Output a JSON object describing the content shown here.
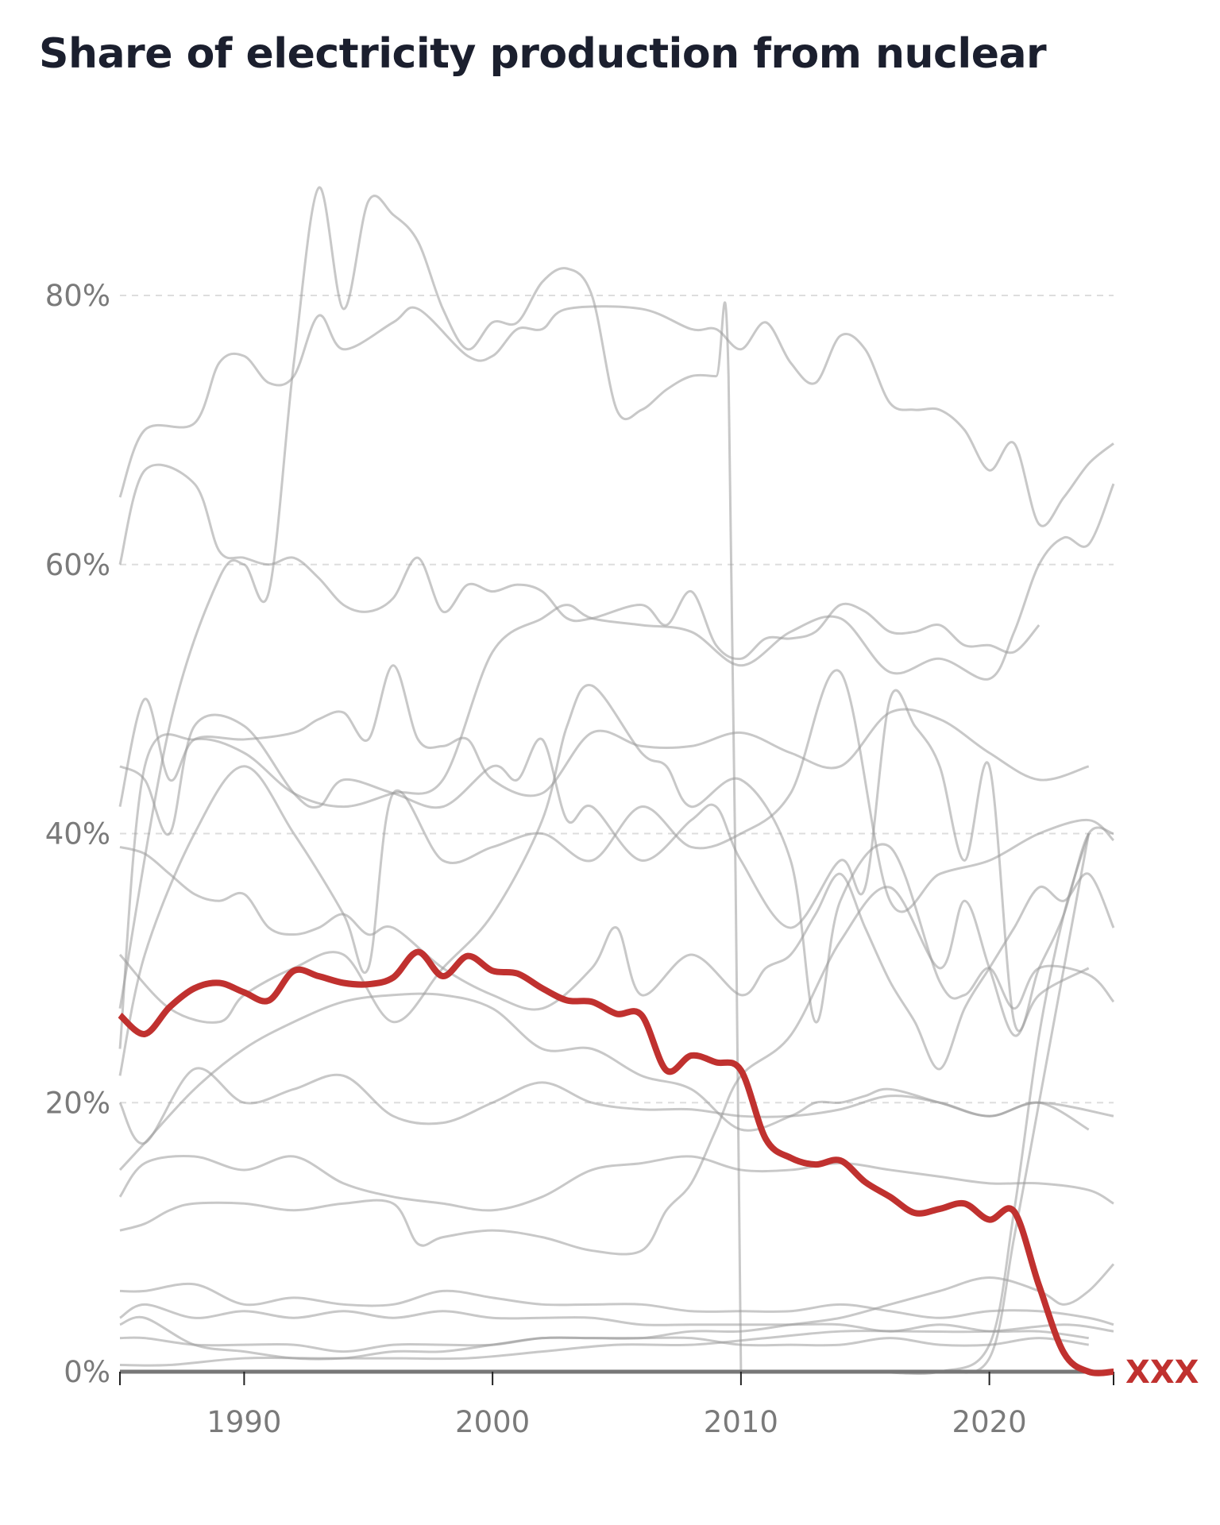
{
  "title": "Share of electricity production from nuclear",
  "chart_data": {
    "type": "line",
    "title": "Share of electricity production from nuclear",
    "xlabel": "",
    "ylabel": "",
    "xlim": [
      1985,
      2025
    ],
    "ylim": [
      0,
      80
    ],
    "y_ticks": [
      0,
      20,
      40,
      60,
      80
    ],
    "y_tick_labels": [
      "0%",
      "20%",
      "40%",
      "60%",
      "80%"
    ],
    "x_ticks": [
      1990,
      2000,
      2010,
      2020
    ],
    "x_tick_labels": [
      "1990",
      "2000",
      "2010",
      "2020"
    ],
    "grid": "horizontal dashed",
    "colors": {
      "highlight": "#c0312f",
      "background": "#9a9a9a",
      "axis": "#777777"
    },
    "highlight": {
      "name": "XXX",
      "x": [
        1985,
        1986,
        1987,
        1988,
        1989,
        1990,
        1991,
        1992,
        1993,
        1994,
        1995,
        1996,
        1997,
        1998,
        1999,
        2000,
        2001,
        2002,
        2003,
        2004,
        2005,
        2006,
        2007,
        2008,
        2009,
        2010,
        2011,
        2012,
        2013,
        2014,
        2015,
        2016,
        2017,
        2018,
        2019,
        2020,
        2021,
        2022,
        2023,
        2024,
        2025
      ],
      "values": [
        26.5,
        25.1,
        27.1,
        28.5,
        28.9,
        28.2,
        27.6,
        29.8,
        29.4,
        28.9,
        28.8,
        29.3,
        31.2,
        29.4,
        30.9,
        29.8,
        29.6,
        28.5,
        27.6,
        27.5,
        26.6,
        26.5,
        22.4,
        23.5,
        23.0,
        22.4,
        17.3,
        15.9,
        15.4,
        15.7,
        14.1,
        13.0,
        11.8,
        12.1,
        12.5,
        11.3,
        11.9,
        6.4,
        1.4,
        0,
        0
      ]
    },
    "series": [
      {
        "x": [
          1985,
          1986,
          1988,
          1989,
          1990,
          1991,
          1992,
          1993,
          1994,
          1996,
          1997,
          1999,
          2000,
          2001,
          2002,
          2003,
          2006,
          2008,
          2009,
          2010,
          2011,
          2012,
          2013,
          2014,
          2015,
          2016,
          2017,
          2018,
          2019,
          2020,
          2021,
          2022,
          2023,
          2024,
          2025
        ],
        "values": [
          65,
          70,
          70.5,
          75,
          75.5,
          73.5,
          74,
          78.5,
          76,
          78,
          79,
          75.5,
          75.5,
          77.5,
          77.5,
          79,
          79,
          77.5,
          77.5,
          76,
          78,
          75,
          73.5,
          77,
          76,
          72,
          71.5,
          71.5,
          70,
          67,
          69,
          63,
          65,
          67.5,
          69
        ]
      },
      {
        "x": [
          1985,
          1986,
          1988,
          1989,
          1990,
          1991,
          1992,
          1993,
          1994,
          1995,
          1996,
          1997,
          1998,
          1999,
          2000,
          2001,
          2002,
          2003,
          2004,
          2006,
          2007,
          2008,
          2009,
          2010,
          2011,
          2012,
          2013,
          2014,
          2015,
          2016,
          2017,
          2018,
          2019,
          2020,
          2021,
          2022
        ],
        "values": [
          60,
          67,
          66,
          61,
          60.5,
          60,
          60.5,
          59,
          57,
          56.5,
          57.5,
          60.5,
          56.5,
          58.5,
          58,
          58.5,
          58,
          56,
          56,
          57,
          55.5,
          58,
          54,
          53,
          54.5,
          54.5,
          55,
          57,
          56.5,
          55,
          55,
          55.5,
          54,
          54,
          53.5,
          55.5
        ]
      },
      {
        "x": [
          1985,
          1987,
          1989,
          1990,
          1991,
          1992,
          1993,
          1994,
          1995,
          1996,
          1997,
          1998,
          1999,
          2000,
          2001,
          2002,
          2003,
          2004,
          2005,
          2006,
          2007,
          2008,
          2009,
          2009.5,
          2010
        ],
        "values": [
          27,
          48,
          59,
          60,
          58,
          75,
          88,
          79,
          87,
          86,
          84,
          79,
          76,
          78,
          78,
          81,
          82,
          80,
          71.5,
          71.5,
          73,
          74,
          74,
          74,
          0
        ]
      },
      {
        "x": [
          1985,
          1986,
          1988,
          1990,
          1992,
          1994,
          1996,
          1998,
          2000,
          2002,
          2003,
          2004,
          2006,
          2008,
          2010,
          2012,
          2014,
          2016,
          2018,
          2020,
          2021,
          2022,
          2023,
          2024,
          2025
        ],
        "values": [
          24,
          45,
          47,
          46,
          43,
          42,
          43,
          44,
          53.5,
          56,
          57,
          56,
          55.5,
          55,
          52.5,
          55,
          56,
          52,
          53,
          51.5,
          55,
          60,
          62,
          61.5,
          66
        ]
      },
      {
        "x": [
          1985,
          1986,
          1987,
          1988,
          1990,
          1992,
          1993,
          1994,
          1995,
          1996,
          1997,
          1998,
          1999,
          2000,
          2002,
          2004,
          2006,
          2008,
          2010,
          2012,
          2014,
          2016,
          2018,
          2020,
          2022,
          2024
        ],
        "values": [
          42,
          50,
          44,
          47,
          47,
          47.5,
          48.5,
          49,
          47,
          52.5,
          47,
          46.5,
          47,
          44,
          43,
          47.5,
          46.5,
          46.5,
          47.5,
          46,
          45,
          49,
          48.5,
          46,
          44,
          45
        ]
      },
      {
        "x": [
          1985,
          1986,
          1987,
          1988,
          1989,
          1990,
          1991,
          1992,
          1993,
          1994,
          1995,
          1996,
          1998,
          2000,
          2002,
          2004,
          2005,
          2006,
          2008,
          2010,
          2011,
          2012,
          2013,
          2014,
          2015,
          2016,
          2017,
          2018,
          2019,
          2020,
          2021,
          2022,
          2023,
          2024,
          2025
        ],
        "values": [
          39,
          38.5,
          37,
          35.5,
          35,
          35.5,
          33,
          32.5,
          33,
          34,
          32.5,
          33,
          30,
          28,
          27,
          30,
          33,
          28,
          31,
          28,
          30,
          31,
          34,
          37,
          33,
          29,
          26,
          22.5,
          27,
          30,
          33,
          36,
          35,
          37,
          33
        ]
      },
      {
        "x": [
          1985,
          1986,
          1987,
          1988,
          1990,
          1992,
          1993,
          1994,
          1996,
          1998,
          2000,
          2001,
          2002,
          2003,
          2004,
          2006,
          2008,
          2009,
          2010,
          2012,
          2014,
          2015,
          2016,
          2017,
          2018,
          2019,
          2020,
          2021,
          2022,
          2023,
          2024,
          2025
        ],
        "values": [
          45,
          44,
          40,
          48,
          48,
          43,
          42,
          44,
          43,
          42,
          45,
          44,
          47,
          41,
          42,
          38,
          41,
          42,
          38,
          33,
          38,
          36,
          50,
          48,
          45,
          38,
          45,
          26,
          30,
          34,
          40,
          40
        ]
      },
      {
        "x": [
          1985,
          1987,
          1989,
          1990,
          1992,
          1994,
          1996,
          1998,
          2000,
          2002,
          2003,
          2004,
          2006,
          2007,
          2008,
          2010,
          2012,
          2013,
          2014,
          2016,
          2018,
          2019,
          2020,
          2021,
          2022,
          2024,
          2025
        ],
        "values": [
          31,
          27,
          26,
          28,
          30,
          31,
          26,
          30,
          34,
          41,
          48,
          51,
          46,
          45,
          42,
          44,
          38,
          26,
          35,
          39,
          29,
          28,
          30,
          27,
          30,
          29.5,
          27.5
        ]
      },
      {
        "x": [
          1985,
          1986,
          1988,
          1990,
          1992,
          1994,
          1995,
          1996,
          1998,
          2000,
          2002,
          2004,
          2006,
          2008,
          2010,
          2012,
          2014,
          2016,
          2018,
          2020,
          2022,
          2024,
          2025
        ],
        "values": [
          22,
          31,
          40,
          45,
          40,
          34,
          30,
          43,
          38,
          39,
          40,
          38,
          42,
          39,
          40,
          43,
          52,
          35,
          37,
          38,
          40,
          41,
          39.5
        ]
      },
      {
        "x": [
          1985,
          1986,
          1988,
          1990,
          1992,
          1994,
          1996,
          1998,
          2000,
          2002,
          2004,
          2006,
          2008,
          2010,
          2012,
          2013,
          2014,
          2015,
          2016,
          2018,
          2020,
          2022,
          2024
        ],
        "values": [
          15,
          17,
          21,
          24,
          26,
          27.5,
          28,
          28,
          27,
          24,
          24,
          22,
          21,
          18,
          19,
          20,
          20,
          20.5,
          21,
          20,
          19,
          20,
          18
        ]
      },
      {
        "x": [
          1985,
          1986,
          1988,
          1990,
          1992,
          1994,
          1996,
          1998,
          2000,
          2002,
          2004,
          2006,
          2008,
          2010,
          2012,
          2014,
          2016,
          2018,
          2020,
          2022,
          2025
        ],
        "values": [
          20,
          17,
          22.5,
          20,
          21,
          22,
          19,
          18.5,
          20,
          21.5,
          20,
          19.5,
          19.5,
          19,
          19,
          19.5,
          20.5,
          20,
          19,
          20,
          19
        ]
      },
      {
        "x": [
          1985,
          1986,
          1988,
          1990,
          1992,
          1994,
          1996,
          1998,
          2000,
          2002,
          2004,
          2006,
          2008,
          2010,
          2012,
          2014,
          2016,
          2018,
          2020,
          2022,
          2024,
          2025
        ],
        "values": [
          13,
          15.5,
          16,
          15,
          16,
          14,
          13,
          12.5,
          12,
          13,
          15,
          15.5,
          16,
          15,
          15,
          15.5,
          15,
          14.5,
          14,
          14,
          13.5,
          12.5
        ]
      },
      {
        "x": [
          1985,
          1986,
          1987,
          1988,
          1990,
          1992,
          1994,
          1996,
          1997,
          1998,
          2000,
          2002,
          2004,
          2006,
          2007,
          2008,
          2009,
          2010,
          2012,
          2014,
          2016,
          2018,
          2019,
          2020,
          2021,
          2022,
          2024
        ],
        "values": [
          10.5,
          11,
          12,
          12.5,
          12.5,
          12,
          12.5,
          12.5,
          9.5,
          10,
          10.5,
          10,
          9,
          9,
          12,
          14,
          18,
          22,
          25,
          32,
          36,
          30,
          35,
          30,
          25,
          28,
          30
        ]
      },
      {
        "x": [
          1985,
          1986,
          1988,
          1990,
          1992,
          1994,
          1996,
          1998,
          2000,
          2002,
          2004,
          2006,
          2008,
          2010,
          2012,
          2014,
          2016,
          2018,
          2020,
          2022,
          2024,
          2025
        ],
        "values": [
          6,
          6,
          6.5,
          5,
          5.5,
          5,
          5,
          6,
          5.5,
          5,
          5,
          5,
          4.5,
          4.5,
          4.5,
          5,
          4.5,
          4,
          4.5,
          4.5,
          4,
          3.5
        ]
      },
      {
        "x": [
          1985,
          1986,
          1988,
          1990,
          1992,
          1994,
          1996,
          1998,
          2000,
          2002,
          2004,
          2006,
          2008,
          2010,
          2012,
          2014,
          2016,
          2018,
          2020,
          2022,
          2024
        ],
        "values": [
          4,
          5,
          4,
          4.5,
          4,
          4.5,
          4,
          4.5,
          4,
          4,
          4,
          3.5,
          3.5,
          3.5,
          3.5,
          3.5,
          3,
          3.5,
          3,
          3,
          2.5
        ]
      },
      {
        "x": [
          1985,
          1986,
          1988,
          1990,
          1992,
          1994,
          1996,
          1998,
          2000,
          2002,
          2004,
          2006,
          2008,
          2010,
          2012,
          2014,
          2016,
          2018,
          2020,
          2022,
          2024
        ],
        "values": [
          2.5,
          2.5,
          2,
          2,
          2,
          1.5,
          2,
          2,
          2,
          2.5,
          2.5,
          2.5,
          2.5,
          2,
          2,
          2,
          2.5,
          2,
          2,
          2.5,
          2
        ]
      },
      {
        "x": [
          1985,
          1987,
          1990,
          1993,
          1996,
          1999,
          2002,
          2005,
          2008,
          2011,
          2014,
          2017,
          2020,
          2023,
          2025
        ],
        "values": [
          0.5,
          0.5,
          1,
          1,
          1,
          1,
          1.5,
          2,
          2,
          2.5,
          3,
          3,
          3,
          3.5,
          3
        ]
      },
      {
        "x": [
          1985,
          1990,
          1995,
          1999,
          2000,
          2002,
          2005,
          2010,
          2015,
          2018,
          2020,
          2021,
          2022,
          2023,
          2024
        ],
        "values": [
          0,
          0,
          0,
          0,
          0,
          0,
          0,
          0,
          0,
          0,
          1,
          10,
          20,
          30,
          40
        ]
      },
      {
        "x": [
          1985,
          1990,
          1995,
          2000,
          2005,
          2010,
          2015,
          2018,
          2020,
          2021,
          2022,
          2023,
          2024
        ],
        "values": [
          0,
          0,
          0,
          0,
          0,
          0,
          0,
          0,
          2,
          12,
          25,
          34,
          40
        ]
      },
      {
        "x": [
          1985,
          1986,
          1988,
          1990,
          1992,
          1994,
          1996,
          1998,
          2000,
          2002,
          2004,
          2006,
          2008,
          2010,
          2012,
          2014,
          2016,
          2018,
          2020,
          2022,
          2023,
          2024,
          2025
        ],
        "values": [
          3.5,
          4,
          2,
          1.5,
          1,
          1,
          1.5,
          1.5,
          2,
          2.5,
          2.5,
          2.5,
          3,
          3,
          3.5,
          4,
          5,
          6,
          7,
          6,
          5,
          6,
          8
        ]
      }
    ]
  }
}
